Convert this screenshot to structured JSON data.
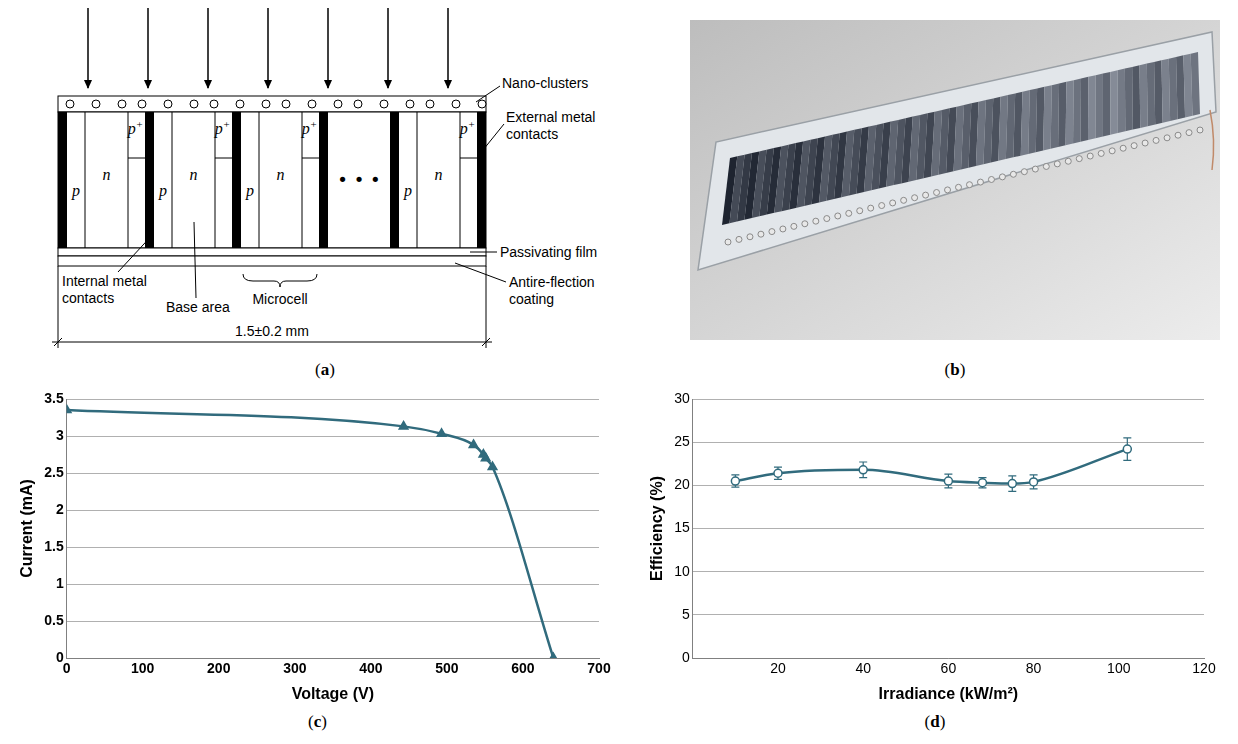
{
  "diagram": {
    "panel": "(a)",
    "row": [
      {
        "p": "p",
        "n": "n",
        "top": "p+"
      },
      {
        "p": "p",
        "n": "n",
        "top": "p+"
      },
      {
        "p": "p",
        "n": "n",
        "top": "p+"
      },
      {
        "ellipsis": "• • •"
      },
      {
        "p": "p",
        "n": "n",
        "top": "p+"
      }
    ],
    "labels": {
      "nano_clusters": [
        "Nano-clusters"
      ],
      "external_contacts": [
        "External metal",
        "contacts"
      ],
      "passivating_film": [
        "Passivating film"
      ],
      "antireflection": [
        "Antire-flection",
        "coating"
      ],
      "internal_contacts": [
        "Internal metal",
        "contacts"
      ],
      "base_area": [
        "Base area"
      ],
      "microcell": [
        "Microcell"
      ]
    },
    "dimension": "1.5±0.2 mm"
  },
  "photo": {
    "panel": "(b)"
  },
  "chart_data": [
    {
      "type": "line",
      "panel": "(c)",
      "x_label": "Voltage (V)",
      "y_label": "Current (mA)",
      "x": [
        0,
        443,
        493,
        535,
        548,
        551,
        560,
        640
      ],
      "values": [
        3.35,
        3.13,
        3.03,
        2.88,
        2.75,
        2.7,
        2.58,
        0
      ],
      "color": "#316b7d",
      "marker": "triangle",
      "xlim": [
        0,
        700
      ],
      "xticks": [
        0,
        100,
        200,
        300,
        400,
        500,
        600,
        700
      ],
      "ylim": [
        0,
        3.5
      ],
      "yticks": [
        0,
        0.5,
        1,
        1.5,
        2,
        2.5,
        3,
        3.5
      ],
      "grid": "y"
    },
    {
      "type": "line",
      "panel": "(d)",
      "x_label": "Irradiance (kW/m²)",
      "y_label": "Efficiency (%)",
      "x": [
        10,
        20,
        40,
        60,
        68,
        75,
        80,
        102
      ],
      "values": [
        20.5,
        21.4,
        21.8,
        20.5,
        20.3,
        20.2,
        20.4,
        24.2
      ],
      "errors": [
        0.7,
        0.7,
        0.9,
        0.8,
        0.6,
        0.9,
        0.8,
        1.3
      ],
      "color": "#316b7d",
      "marker": "open_circle",
      "xlim": [
        0,
        120
      ],
      "xticks": [
        20,
        40,
        60,
        80,
        100,
        120
      ],
      "ylim": [
        0,
        30
      ],
      "yticks": [
        0,
        5,
        10,
        15,
        20,
        25,
        30
      ],
      "grid": "y"
    }
  ]
}
